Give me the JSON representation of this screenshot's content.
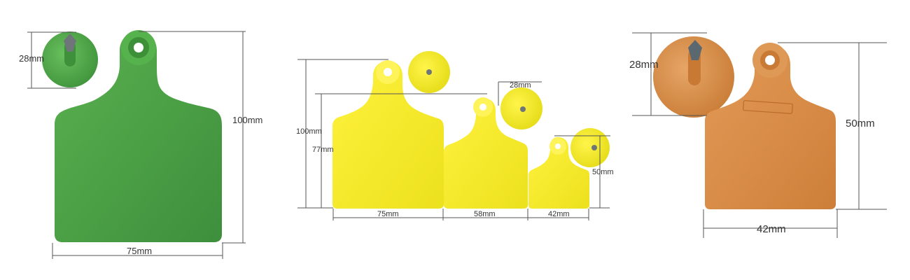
{
  "colors": {
    "green": "#3f9b3f",
    "green_dark": "#2f7f31",
    "green_light": "#5fbf55",
    "yellow": "#f2ea1b",
    "yellow_dark": "#d8cf10",
    "yellow_light": "#fff65a",
    "orange": "#d98a42",
    "orange_dark": "#b96b2b",
    "orange_light": "#e3a062",
    "line": "#555555",
    "text": "#333333",
    "pin_gray": "#6f767a"
  },
  "labels": {
    "green": {
      "stud_diameter": "28mm",
      "height": "100mm",
      "width": "75mm"
    },
    "yellow": {
      "height_large": "100mm",
      "height_medium": "77mm",
      "width_large": "75mm",
      "width_medium": "58mm",
      "width_small": "42mm",
      "stud_diameter": "28mm",
      "height_small": "50mm"
    },
    "orange": {
      "stud_diameter": "28mm",
      "height": "50mm",
      "width": "42mm"
    }
  }
}
